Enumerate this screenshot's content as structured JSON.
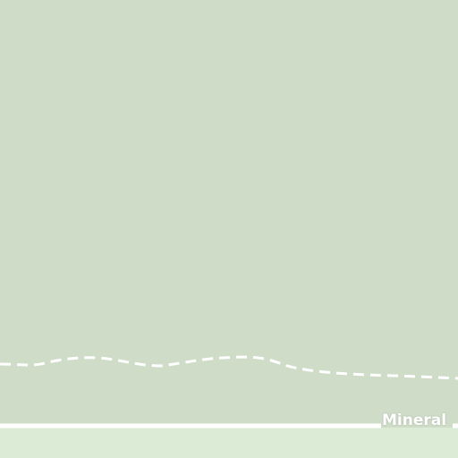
{
  "map": {
    "colors": {
      "forest": "#cfdcc8",
      "grassland": "#dcebd5",
      "road": "#ffffff",
      "trail": "#ffffff"
    },
    "road_label": "Mineral"
  }
}
